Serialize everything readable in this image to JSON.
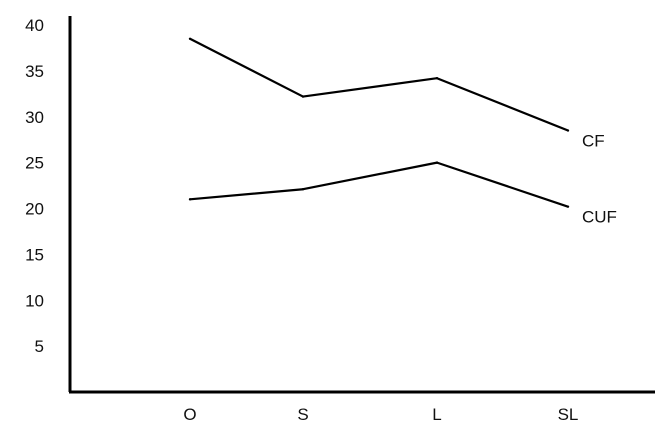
{
  "chart_data": {
    "type": "line",
    "categories": [
      "O",
      "S",
      "L",
      "SL"
    ],
    "series": [
      {
        "name": "CF",
        "values": [
          38.5,
          32.2,
          34.2,
          28.5
        ]
      },
      {
        "name": "CUF",
        "values": [
          21.0,
          22.1,
          25.0,
          20.2
        ]
      }
    ],
    "y_ticks": [
      5,
      10,
      15,
      20,
      25,
      30,
      35,
      40
    ],
    "y_tick_labels": [
      "5",
      "10",
      "15",
      "20",
      "25",
      "30",
      "35",
      "40"
    ],
    "ylim": [
      0,
      40
    ],
    "grid": false,
    "legend": "inline labels at line ends",
    "color": "#000000"
  }
}
